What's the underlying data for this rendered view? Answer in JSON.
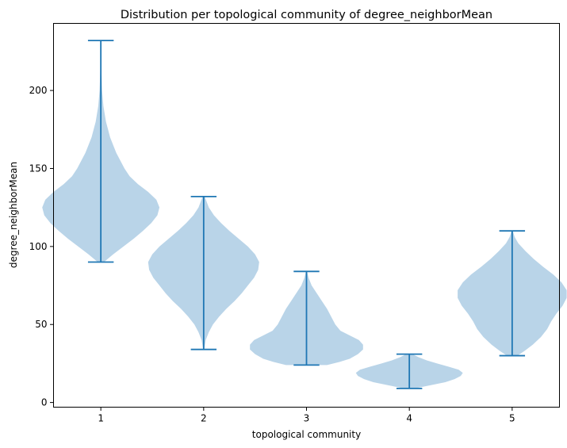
{
  "chart_data": {
    "type": "violin",
    "title": "Distribution per topological community of degree_neighborMean",
    "xlabel": "topological community",
    "ylabel": "degree_neighborMean",
    "categories": [
      "1",
      "2",
      "3",
      "4",
      "5"
    ],
    "xlim": [
      0.54,
      5.46
    ],
    "ylim": [
      -3,
      243
    ],
    "yticks": [
      0,
      50,
      100,
      150,
      200
    ],
    "colors": {
      "body": "#b9d4e8",
      "line": "#1f77b4"
    },
    "violins": [
      {
        "category": "1",
        "min": 90,
        "max": 232,
        "profile": [
          [
            90,
            0.03
          ],
          [
            95,
            0.12
          ],
          [
            100,
            0.22
          ],
          [
            105,
            0.32
          ],
          [
            110,
            0.41
          ],
          [
            115,
            0.49
          ],
          [
            120,
            0.55
          ],
          [
            125,
            0.57
          ],
          [
            130,
            0.54
          ],
          [
            135,
            0.46
          ],
          [
            140,
            0.36
          ],
          [
            145,
            0.28
          ],
          [
            150,
            0.23
          ],
          [
            155,
            0.19
          ],
          [
            160,
            0.15
          ],
          [
            165,
            0.12
          ],
          [
            170,
            0.09
          ],
          [
            175,
            0.07
          ],
          [
            180,
            0.05
          ],
          [
            190,
            0.025
          ],
          [
            200,
            0.012
          ],
          [
            215,
            0.004
          ],
          [
            232,
            0.001
          ]
        ]
      },
      {
        "category": "2",
        "min": 34,
        "max": 132,
        "profile": [
          [
            34,
            0.005
          ],
          [
            40,
            0.02
          ],
          [
            45,
            0.05
          ],
          [
            50,
            0.09
          ],
          [
            55,
            0.15
          ],
          [
            60,
            0.22
          ],
          [
            65,
            0.3
          ],
          [
            70,
            0.37
          ],
          [
            75,
            0.43
          ],
          [
            80,
            0.49
          ],
          [
            85,
            0.53
          ],
          [
            90,
            0.54
          ],
          [
            95,
            0.5
          ],
          [
            100,
            0.43
          ],
          [
            105,
            0.34
          ],
          [
            110,
            0.25
          ],
          [
            115,
            0.17
          ],
          [
            120,
            0.1
          ],
          [
            125,
            0.05
          ],
          [
            132,
            0.01
          ]
        ]
      },
      {
        "category": "3",
        "min": 24,
        "max": 84,
        "profile": [
          [
            24,
            0.2
          ],
          [
            26,
            0.32
          ],
          [
            28,
            0.42
          ],
          [
            31,
            0.5
          ],
          [
            34,
            0.55
          ],
          [
            37,
            0.55
          ],
          [
            40,
            0.51
          ],
          [
            43,
            0.42
          ],
          [
            46,
            0.33
          ],
          [
            50,
            0.28
          ],
          [
            55,
            0.24
          ],
          [
            60,
            0.2
          ],
          [
            65,
            0.15
          ],
          [
            70,
            0.1
          ],
          [
            75,
            0.05
          ],
          [
            80,
            0.02
          ],
          [
            84,
            0.005
          ]
        ]
      },
      {
        "category": "4",
        "min": 9,
        "max": 31,
        "profile": [
          [
            9,
            0.05
          ],
          [
            11,
            0.2
          ],
          [
            13,
            0.35
          ],
          [
            15,
            0.44
          ],
          [
            17,
            0.5
          ],
          [
            19,
            0.52
          ],
          [
            21,
            0.48
          ],
          [
            23,
            0.38
          ],
          [
            25,
            0.27
          ],
          [
            27,
            0.17
          ],
          [
            29,
            0.09
          ],
          [
            31,
            0.03
          ]
        ]
      },
      {
        "category": "5",
        "min": 30,
        "max": 110,
        "profile": [
          [
            30,
            0.05
          ],
          [
            33,
            0.12
          ],
          [
            37,
            0.2
          ],
          [
            42,
            0.28
          ],
          [
            47,
            0.34
          ],
          [
            52,
            0.38
          ],
          [
            57,
            0.43
          ],
          [
            62,
            0.49
          ],
          [
            67,
            0.53
          ],
          [
            72,
            0.53
          ],
          [
            77,
            0.48
          ],
          [
            82,
            0.4
          ],
          [
            87,
            0.3
          ],
          [
            92,
            0.21
          ],
          [
            97,
            0.13
          ],
          [
            102,
            0.06
          ],
          [
            106,
            0.025
          ],
          [
            110,
            0.005
          ]
        ]
      }
    ]
  }
}
